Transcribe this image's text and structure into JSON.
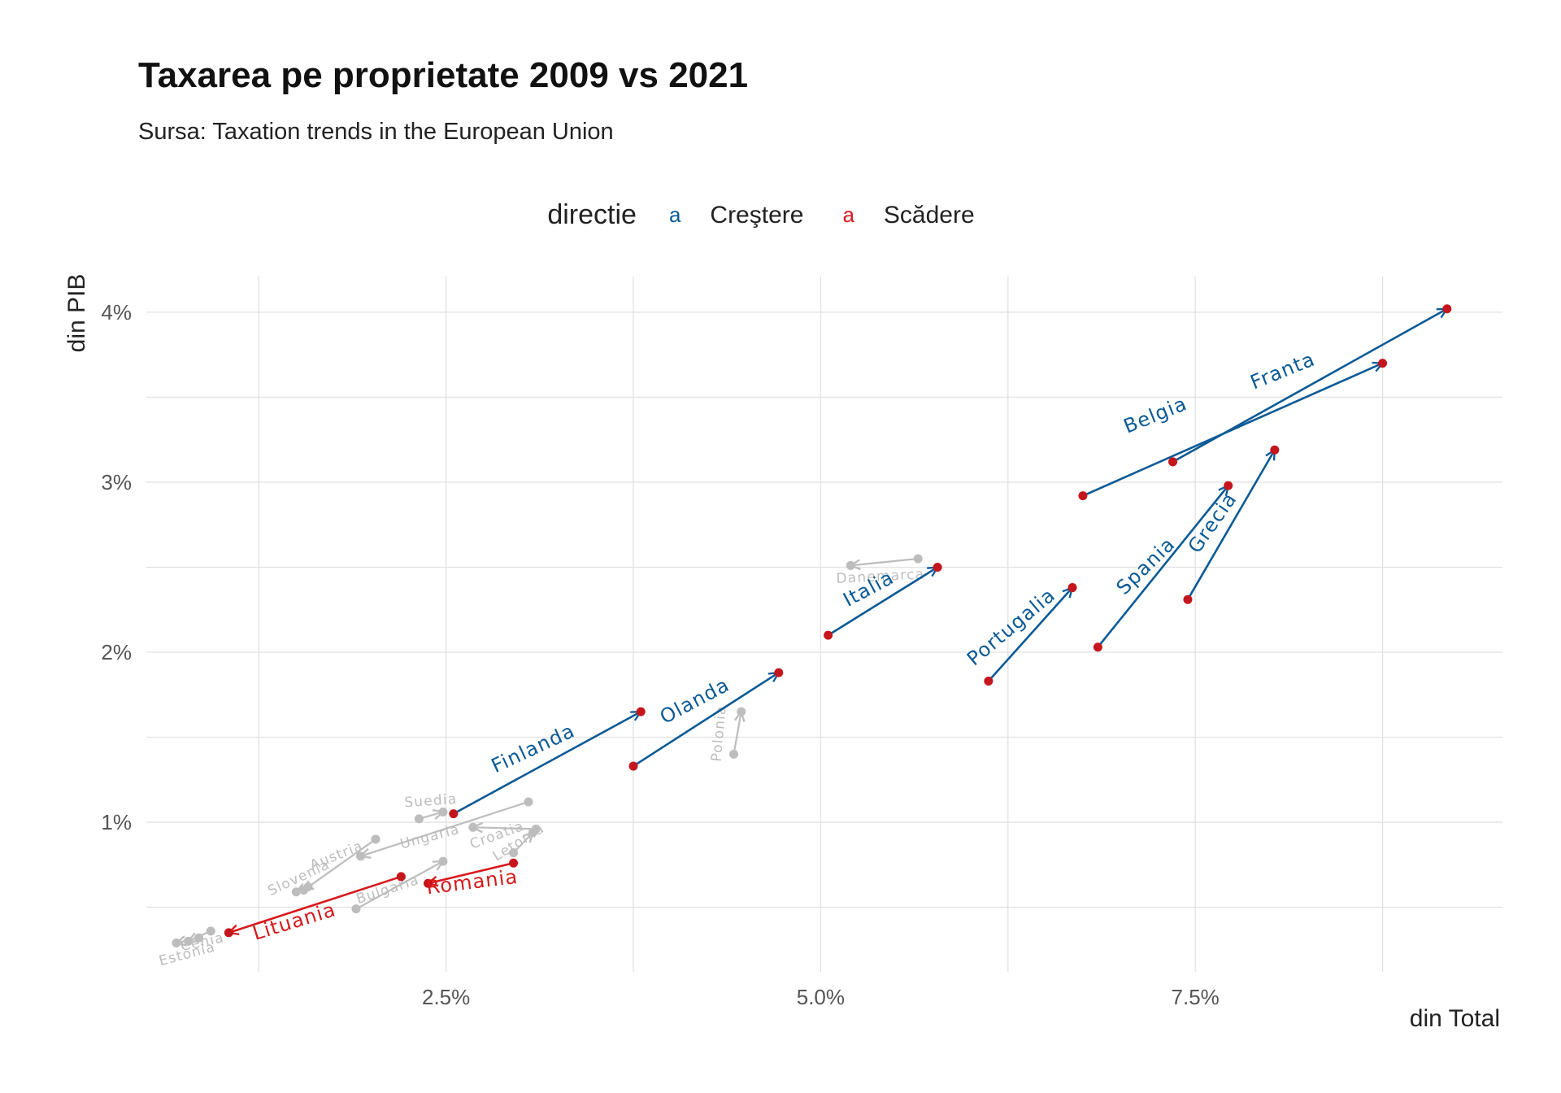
{
  "header": {
    "title": "Taxarea pe proprietate 2009 vs 2021",
    "subtitle": "Sursa: Taxation trends in the European Union"
  },
  "legend": {
    "title": "directie",
    "key_glyph": "a",
    "items": [
      {
        "label": "Creştere",
        "color": "#0b5a96"
      },
      {
        "label": "Scădere",
        "color": "#d7191c"
      }
    ]
  },
  "colors": {
    "increase": "#0b5a96",
    "decrease": "#d7191c",
    "other": "#bdbdbd",
    "point_2021": "#c4161c",
    "grid": "#e2e2e2"
  },
  "chart_data": {
    "type": "scatter",
    "title": "Taxarea pe proprietate 2009 vs 2021",
    "subtitle": "Sursa: Taxation trends in the European Union",
    "xlabel": "din Total",
    "ylabel": "din PIB",
    "xlim": [
      0.005,
      0.0955
    ],
    "ylim": [
      0.0012,
      0.0421
    ],
    "x_ticks": [
      0.025,
      0.05,
      0.075
    ],
    "x_tick_labels": [
      "2.5%",
      "5.0%",
      "7.5%"
    ],
    "y_ticks": [
      0.01,
      0.02,
      0.03,
      0.04
    ],
    "y_tick_labels": [
      "1%",
      "2%",
      "3%",
      "4%"
    ],
    "grid": true,
    "legend_position": "top",
    "series": [
      {
        "name": "Belgia",
        "direction": "increase",
        "x1": 0.0675,
        "y1": 0.0292,
        "x2": 0.0875,
        "y2": 0.037,
        "label_x": 0.0725,
        "label_y": 0.0336,
        "label_angle": -22
      },
      {
        "name": "Franta",
        "direction": "increase",
        "x1": 0.0735,
        "y1": 0.0312,
        "x2": 0.0918,
        "y2": 0.0402,
        "label_x": 0.081,
        "label_y": 0.0362,
        "label_angle": -22
      },
      {
        "name": "Spania",
        "direction": "increase",
        "x1": 0.0685,
        "y1": 0.0203,
        "x2": 0.0772,
        "y2": 0.0298,
        "label_x": 0.072,
        "label_y": 0.0248,
        "label_angle": -44
      },
      {
        "name": "Grecia",
        "direction": "increase",
        "x1": 0.0745,
        "y1": 0.0231,
        "x2": 0.0803,
        "y2": 0.0319,
        "label_x": 0.0765,
        "label_y": 0.0274,
        "label_angle": -55
      },
      {
        "name": "Portugalia",
        "direction": "increase",
        "x1": 0.0612,
        "y1": 0.0183,
        "x2": 0.0668,
        "y2": 0.0238,
        "label_x": 0.063,
        "label_y": 0.0212,
        "label_angle": -40
      },
      {
        "name": "Italia",
        "direction": "increase",
        "x1": 0.0505,
        "y1": 0.021,
        "x2": 0.0578,
        "y2": 0.025,
        "label_x": 0.0534,
        "label_y": 0.0234,
        "label_angle": -28
      },
      {
        "name": "Olanda",
        "direction": "increase",
        "x1": 0.0375,
        "y1": 0.0133,
        "x2": 0.0472,
        "y2": 0.0188,
        "label_x": 0.0418,
        "label_y": 0.0168,
        "label_angle": -28
      },
      {
        "name": "Finlanda",
        "direction": "increase",
        "x1": 0.0255,
        "y1": 0.0105,
        "x2": 0.038,
        "y2": 0.0165,
        "label_x": 0.031,
        "label_y": 0.014,
        "label_angle": -25
      },
      {
        "name": "Lituania",
        "direction": "decrease",
        "x1": 0.022,
        "y1": 0.0068,
        "x2": 0.0105,
        "y2": 0.0035,
        "label_x": 0.015,
        "label_y": 0.0038,
        "label_angle": -17
      },
      {
        "name": "Romania",
        "direction": "decrease",
        "x1": 0.0295,
        "y1": 0.0076,
        "x2": 0.0238,
        "y2": 0.0064,
        "label_x": 0.0268,
        "label_y": 0.0061,
        "label_angle": -7
      },
      {
        "name": "Danemarca",
        "direction": "other",
        "x1": 0.0565,
        "y1": 0.0255,
        "x2": 0.052,
        "y2": 0.0251,
        "label_x": 0.054,
        "label_y": 0.0242,
        "label_angle": -3
      },
      {
        "name": "Polonia",
        "direction": "other",
        "x1": 0.0442,
        "y1": 0.014,
        "x2": 0.0447,
        "y2": 0.0165,
        "label_x": 0.0435,
        "label_y": 0.0152,
        "label_angle": -85
      },
      {
        "name": "Suedia",
        "direction": "other",
        "x1": 0.0232,
        "y1": 0.0102,
        "x2": 0.0248,
        "y2": 0.0106,
        "label_x": 0.024,
        "label_y": 0.011,
        "label_angle": -4
      },
      {
        "name": "Ungaria",
        "direction": "other",
        "x1": 0.0305,
        "y1": 0.0112,
        "x2": 0.0193,
        "y2": 0.008,
        "label_x": 0.024,
        "label_y": 0.0089,
        "label_angle": -15
      },
      {
        "name": "Croatia",
        "direction": "other",
        "x1": 0.031,
        "y1": 0.0096,
        "x2": 0.0268,
        "y2": 0.0097,
        "label_x": 0.0285,
        "label_y": 0.009,
        "label_angle": -20
      },
      {
        "name": "Austria",
        "direction": "other",
        "x1": 0.0203,
        "y1": 0.009,
        "x2": 0.0155,
        "y2": 0.006,
        "label_x": 0.0178,
        "label_y": 0.0078,
        "label_angle": -22
      },
      {
        "name": "Bulgaria",
        "direction": "other",
        "x1": 0.019,
        "y1": 0.0049,
        "x2": 0.0248,
        "y2": 0.0077,
        "label_x": 0.0212,
        "label_y": 0.0058,
        "label_angle": -18
      },
      {
        "name": "Letonia",
        "direction": "other",
        "x1": 0.0295,
        "y1": 0.0082,
        "x2": 0.0308,
        "y2": 0.0094,
        "label_x": 0.03,
        "label_y": 0.0086,
        "label_angle": -32
      },
      {
        "name": "Slovenia",
        "direction": "other",
        "x1": 0.0158,
        "y1": 0.0062,
        "x2": 0.015,
        "y2": 0.0059,
        "label_x": 0.0153,
        "label_y": 0.0065,
        "label_angle": -25
      },
      {
        "name": "Cehia",
        "direction": "other",
        "x1": 0.0093,
        "y1": 0.0036,
        "x2": 0.0078,
        "y2": 0.003,
        "label_x": 0.0088,
        "label_y": 0.0027,
        "label_angle": -12
      },
      {
        "name": "Estonia",
        "direction": "other",
        "x1": 0.0085,
        "y1": 0.0032,
        "x2": 0.007,
        "y2": 0.0029,
        "label_x": 0.0078,
        "label_y": 0.002,
        "label_angle": -15
      }
    ]
  }
}
